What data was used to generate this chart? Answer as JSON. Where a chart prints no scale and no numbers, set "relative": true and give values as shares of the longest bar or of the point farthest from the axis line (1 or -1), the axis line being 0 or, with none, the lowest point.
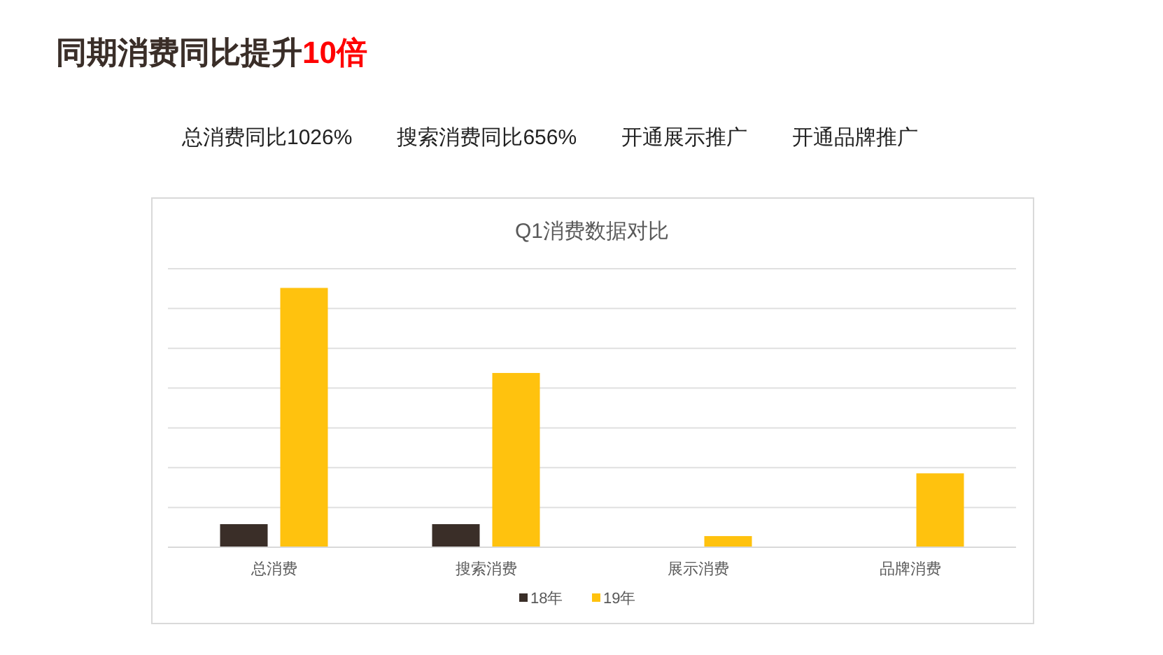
{
  "chart_data": {
    "type": "bar",
    "title": "同期消费同比提升10倍",
    "subtitle": "Q1消费数据对比",
    "annotations": [
      "总消费同比1026%",
      "搜索消费同比656%",
      "开通展示推广",
      "开通品牌推广"
    ],
    "categories": [
      "总消费",
      "搜索消费",
      "展示消费",
      "品牌消费"
    ],
    "relative": true,
    "grid": "y",
    "legend": "bottom",
    "series": [
      {
        "name": "18年",
        "color": "#3a2e28",
        "values": [
          0.089,
          0.089,
          null,
          null
        ]
      },
      {
        "name": "19年",
        "color": "#ffc20e",
        "values": [
          1,
          0.672,
          0.043,
          0.285
        ]
      }
    ]
  }
}
